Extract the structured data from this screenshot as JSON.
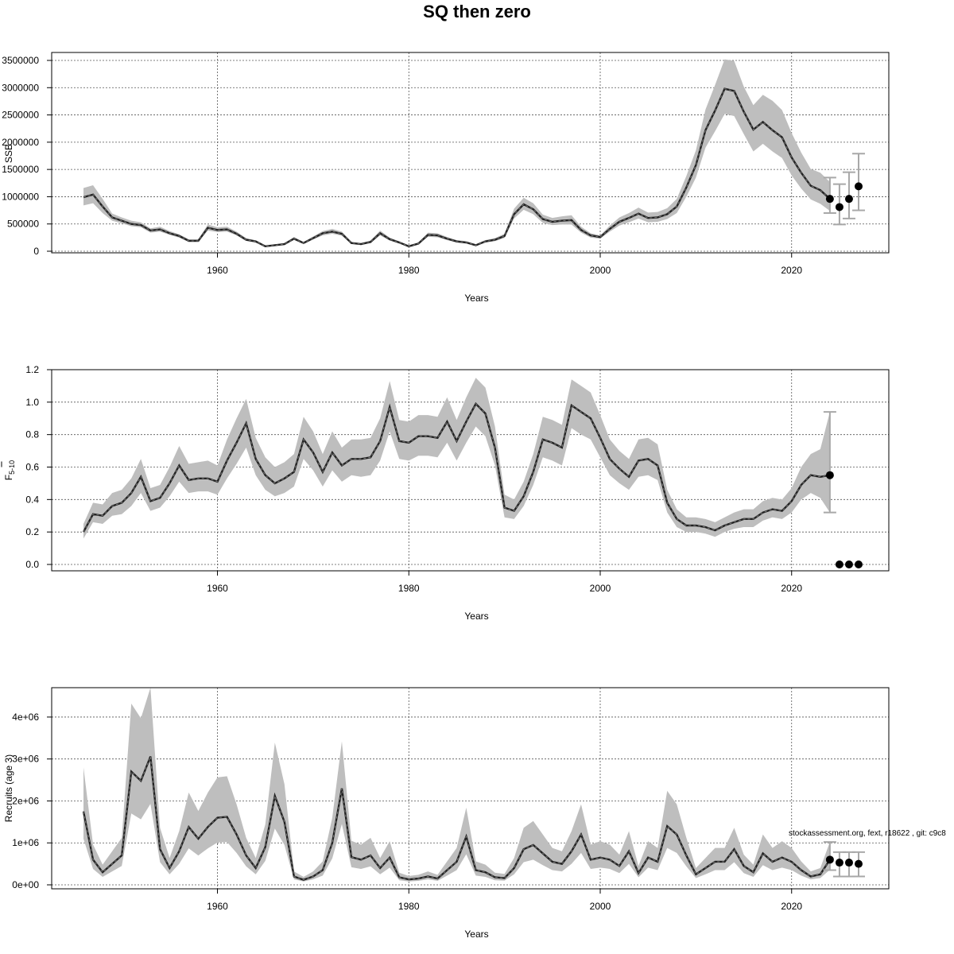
{
  "page": {
    "title": "SQ then zero",
    "footnote": "stockassessment.org, fext, r18622 , git: c9c8"
  },
  "chart_data": [
    {
      "type": "line",
      "xlabel": "Years",
      "ylabel": "SSB",
      "xlim": [
        1946,
        2027
      ],
      "ylim": [
        0,
        3500000
      ],
      "xticks": [
        1960,
        1980,
        2000,
        2020
      ],
      "xtick_labels": [
        "1960",
        "1980",
        "2000",
        "2020"
      ],
      "yticks": [
        0,
        500000,
        1000000,
        1500000,
        2000000,
        2500000,
        3000000,
        3500000
      ],
      "ytick_labels": [
        "0",
        "500000",
        "1000000",
        "1500000",
        "2000000",
        "2500000",
        "3000000",
        "3500000"
      ],
      "grid": true,
      "years": [
        1946,
        1947,
        1948,
        1949,
        1950,
        1951,
        1952,
        1953,
        1954,
        1955,
        1956,
        1957,
        1958,
        1959,
        1960,
        1961,
        1962,
        1963,
        1964,
        1965,
        1966,
        1967,
        1968,
        1969,
        1970,
        1971,
        1972,
        1973,
        1974,
        1975,
        1976,
        1977,
        1978,
        1979,
        1980,
        1981,
        1982,
        1983,
        1984,
        1985,
        1986,
        1987,
        1988,
        1989,
        1990,
        1991,
        1992,
        1993,
        1994,
        1995,
        1996,
        1997,
        1998,
        1999,
        2000,
        2001,
        2002,
        2003,
        2004,
        2005,
        2006,
        2007,
        2008,
        2009,
        2010,
        2011,
        2012,
        2013,
        2014,
        2015,
        2016,
        2017,
        2018,
        2019,
        2020,
        2021,
        2022,
        2023,
        2024
      ],
      "estimate": [
        990000,
        1040000,
        820000,
        620000,
        560000,
        500000,
        480000,
        380000,
        400000,
        330000,
        280000,
        190000,
        190000,
        430000,
        390000,
        400000,
        320000,
        210000,
        180000,
        90000,
        110000,
        130000,
        230000,
        150000,
        240000,
        330000,
        360000,
        320000,
        150000,
        130000,
        170000,
        330000,
        220000,
        160000,
        90000,
        140000,
        300000,
        290000,
        230000,
        180000,
        160000,
        110000,
        180000,
        210000,
        280000,
        680000,
        860000,
        770000,
        590000,
        540000,
        560000,
        570000,
        390000,
        290000,
        260000,
        410000,
        540000,
        610000,
        690000,
        610000,
        620000,
        680000,
        820000,
        1170000,
        1580000,
        2220000,
        2580000,
        2980000,
        2940000,
        2560000,
        2230000,
        2370000,
        2220000,
        2090000,
        1720000,
        1440000,
        1200000,
        1120000,
        960000
      ],
      "lower": [
        840000,
        880000,
        700000,
        560000,
        510000,
        460000,
        440000,
        340000,
        360000,
        300000,
        250000,
        170000,
        170000,
        380000,
        350000,
        360000,
        290000,
        190000,
        160000,
        80000,
        100000,
        120000,
        210000,
        135000,
        215000,
        290000,
        320000,
        285000,
        135000,
        115000,
        150000,
        290000,
        195000,
        140000,
        80000,
        125000,
        265000,
        255000,
        205000,
        160000,
        140000,
        95000,
        160000,
        185000,
        245000,
        600000,
        760000,
        680000,
        520000,
        480000,
        490000,
        490000,
        340000,
        250000,
        230000,
        360000,
        470000,
        530000,
        600000,
        530000,
        540000,
        590000,
        700000,
        1000000,
        1350000,
        1900000,
        2200000,
        2520000,
        2480000,
        2150000,
        1830000,
        1970000,
        1830000,
        1710000,
        1390000,
        1150000,
        950000,
        870000,
        740000
      ],
      "upper": [
        1160000,
        1210000,
        960000,
        690000,
        620000,
        560000,
        530000,
        420000,
        450000,
        370000,
        310000,
        220000,
        220000,
        490000,
        440000,
        450000,
        360000,
        240000,
        200000,
        105000,
        125000,
        150000,
        260000,
        170000,
        270000,
        370000,
        410000,
        360000,
        170000,
        150000,
        195000,
        380000,
        250000,
        180000,
        105000,
        160000,
        340000,
        330000,
        260000,
        205000,
        185000,
        125000,
        205000,
        240000,
        320000,
        780000,
        980000,
        880000,
        670000,
        610000,
        640000,
        660000,
        450000,
        330000,
        290000,
        470000,
        620000,
        700000,
        800000,
        710000,
        720000,
        790000,
        960000,
        1380000,
        1850000,
        2600000,
        3050000,
        3520000,
        3490000,
        3020000,
        2680000,
        2870000,
        2760000,
        2590000,
        2170000,
        1810000,
        1510000,
        1440000,
        1270000
      ],
      "projection": {
        "years": [
          2024,
          2025,
          2026,
          2027
        ],
        "median": [
          960000,
          810000,
          960000,
          1190000
        ],
        "low": [
          700000,
          490000,
          600000,
          750000
        ],
        "high": [
          1350000,
          1230000,
          1450000,
          1790000
        ]
      }
    },
    {
      "type": "line",
      "xlabel": "Years",
      "ylabel": "F5-10",
      "ylabel_main": "F",
      "ylabel_sub": "5-10",
      "xlim": [
        1946,
        2027
      ],
      "ylim": [
        0,
        1.2
      ],
      "xticks": [
        1960,
        1980,
        2000,
        2020
      ],
      "xtick_labels": [
        "1960",
        "1980",
        "2000",
        "2020"
      ],
      "yticks": [
        0,
        0.2,
        0.4,
        0.6,
        0.8,
        1.0,
        1.2
      ],
      "ytick_labels": [
        "0.0",
        "0.2",
        "0.4",
        "0.6",
        "0.8",
        "1.0",
        "1.2"
      ],
      "grid": true,
      "years": [
        1946,
        1947,
        1948,
        1949,
        1950,
        1951,
        1952,
        1953,
        1954,
        1955,
        1956,
        1957,
        1958,
        1959,
        1960,
        1961,
        1962,
        1963,
        1964,
        1965,
        1966,
        1967,
        1968,
        1969,
        1970,
        1971,
        1972,
        1973,
        1974,
        1975,
        1976,
        1977,
        1978,
        1979,
        1980,
        1981,
        1982,
        1983,
        1984,
        1985,
        1986,
        1987,
        1988,
        1989,
        1990,
        1991,
        1992,
        1993,
        1994,
        1995,
        1996,
        1997,
        1998,
        1999,
        2000,
        2001,
        2002,
        2003,
        2004,
        2005,
        2006,
        2007,
        2008,
        2009,
        2010,
        2011,
        2012,
        2013,
        2014,
        2015,
        2016,
        2017,
        2018,
        2019,
        2020,
        2021,
        2022,
        2023,
        2024
      ],
      "estimate": [
        0.2,
        0.31,
        0.3,
        0.36,
        0.38,
        0.44,
        0.54,
        0.39,
        0.41,
        0.5,
        0.61,
        0.52,
        0.53,
        0.53,
        0.51,
        0.64,
        0.75,
        0.87,
        0.65,
        0.55,
        0.5,
        0.53,
        0.57,
        0.77,
        0.69,
        0.57,
        0.69,
        0.61,
        0.65,
        0.65,
        0.66,
        0.76,
        0.97,
        0.76,
        0.75,
        0.79,
        0.79,
        0.78,
        0.88,
        0.76,
        0.88,
        0.99,
        0.93,
        0.72,
        0.35,
        0.33,
        0.42,
        0.57,
        0.77,
        0.75,
        0.72,
        0.98,
        0.94,
        0.9,
        0.78,
        0.65,
        0.59,
        0.54,
        0.64,
        0.65,
        0.61,
        0.38,
        0.28,
        0.24,
        0.24,
        0.23,
        0.21,
        0.24,
        0.26,
        0.28,
        0.28,
        0.32,
        0.34,
        0.33,
        0.39,
        0.49,
        0.55,
        0.54,
        0.55
      ],
      "lower": [
        0.16,
        0.26,
        0.25,
        0.3,
        0.31,
        0.36,
        0.44,
        0.33,
        0.35,
        0.42,
        0.51,
        0.44,
        0.45,
        0.45,
        0.43,
        0.53,
        0.62,
        0.72,
        0.55,
        0.46,
        0.42,
        0.44,
        0.48,
        0.65,
        0.58,
        0.48,
        0.58,
        0.51,
        0.55,
        0.54,
        0.55,
        0.64,
        0.82,
        0.65,
        0.64,
        0.67,
        0.67,
        0.66,
        0.75,
        0.64,
        0.75,
        0.85,
        0.79,
        0.61,
        0.29,
        0.28,
        0.36,
        0.49,
        0.66,
        0.64,
        0.61,
        0.84,
        0.8,
        0.77,
        0.66,
        0.55,
        0.5,
        0.46,
        0.54,
        0.55,
        0.52,
        0.32,
        0.23,
        0.2,
        0.2,
        0.19,
        0.17,
        0.2,
        0.22,
        0.23,
        0.23,
        0.27,
        0.29,
        0.28,
        0.32,
        0.4,
        0.44,
        0.41,
        0.32
      ],
      "upper": [
        0.25,
        0.38,
        0.37,
        0.44,
        0.46,
        0.53,
        0.65,
        0.47,
        0.49,
        0.6,
        0.73,
        0.62,
        0.63,
        0.64,
        0.61,
        0.77,
        0.9,
        1.02,
        0.78,
        0.66,
        0.6,
        0.63,
        0.68,
        0.91,
        0.82,
        0.68,
        0.82,
        0.72,
        0.77,
        0.77,
        0.78,
        0.9,
        1.13,
        0.89,
        0.88,
        0.92,
        0.92,
        0.91,
        1.03,
        0.89,
        1.03,
        1.15,
        1.09,
        0.85,
        0.43,
        0.4,
        0.51,
        0.68,
        0.91,
        0.89,
        0.86,
        1.14,
        1.1,
        1.06,
        0.92,
        0.77,
        0.7,
        0.65,
        0.77,
        0.78,
        0.74,
        0.46,
        0.34,
        0.29,
        0.29,
        0.28,
        0.26,
        0.29,
        0.32,
        0.34,
        0.34,
        0.39,
        0.41,
        0.4,
        0.47,
        0.6,
        0.68,
        0.71,
        0.94
      ],
      "projection": {
        "years": [
          2024,
          2025,
          2026,
          2027
        ],
        "median": [
          0.55,
          0.0,
          0.0,
          0.0
        ],
        "low": [
          0.32,
          null,
          null,
          null
        ],
        "high": [
          0.94,
          null,
          null,
          null
        ]
      }
    },
    {
      "type": "line",
      "xlabel": "Years",
      "ylabel": "Recruits (age 3)",
      "xlim": [
        1946,
        2027
      ],
      "ylim": [
        0,
        4700000
      ],
      "xticks": [
        1960,
        1980,
        2000,
        2020
      ],
      "xtick_labels": [
        "1960",
        "1980",
        "2000",
        "2020"
      ],
      "yticks": [
        0,
        1000000,
        2000000,
        3000000,
        4000000
      ],
      "ytick_labels": [
        "0e+00",
        "1e+06",
        "2e+06",
        "3e+06",
        "4e+06"
      ],
      "grid": true,
      "years": [
        1946,
        1947,
        1948,
        1949,
        1950,
        1951,
        1952,
        1953,
        1954,
        1955,
        1956,
        1957,
        1958,
        1959,
        1960,
        1961,
        1962,
        1963,
        1964,
        1965,
        1966,
        1967,
        1968,
        1969,
        1970,
        1971,
        1972,
        1973,
        1974,
        1975,
        1976,
        1977,
        1978,
        1979,
        1980,
        1981,
        1982,
        1983,
        1984,
        1985,
        1986,
        1987,
        1988,
        1989,
        1990,
        1991,
        1992,
        1993,
        1994,
        1995,
        1996,
        1997,
        1998,
        1999,
        2000,
        2001,
        2002,
        2003,
        2004,
        2005,
        2006,
        2007,
        2008,
        2009,
        2010,
        2011,
        2012,
        2013,
        2014,
        2015,
        2016,
        2017,
        2018,
        2019,
        2020,
        2021,
        2022,
        2023,
        2024
      ],
      "estimate": [
        1750000,
        600000,
        300000,
        500000,
        700000,
        2700000,
        2480000,
        3060000,
        850000,
        400000,
        800000,
        1380000,
        1100000,
        1380000,
        1600000,
        1620000,
        1200000,
        700000,
        400000,
        900000,
        2120000,
        1500000,
        200000,
        120000,
        200000,
        350000,
        1000000,
        2300000,
        660000,
        600000,
        700000,
        400000,
        650000,
        180000,
        130000,
        150000,
        200000,
        150000,
        350000,
        550000,
        1150000,
        350000,
        300000,
        180000,
        160000,
        400000,
        850000,
        950000,
        750000,
        550000,
        500000,
        800000,
        1200000,
        600000,
        650000,
        600000,
        450000,
        800000,
        280000,
        650000,
        550000,
        1400000,
        1200000,
        700000,
        250000,
        400000,
        550000,
        550000,
        850000,
        450000,
        300000,
        750000,
        550000,
        650000,
        550000,
        350000,
        200000,
        250000,
        600000
      ],
      "lower": [
        1100000,
        380000,
        190000,
        320000,
        450000,
        1700000,
        1560000,
        1930000,
        540000,
        250000,
        500000,
        870000,
        700000,
        870000,
        1010000,
        1020000,
        760000,
        440000,
        250000,
        570000,
        1340000,
        950000,
        130000,
        80000,
        130000,
        220000,
        630000,
        1450000,
        420000,
        380000,
        440000,
        250000,
        410000,
        110000,
        80000,
        95000,
        130000,
        95000,
        220000,
        350000,
        730000,
        220000,
        190000,
        110000,
        100000,
        250000,
        540000,
        600000,
        470000,
        350000,
        320000,
        500000,
        760000,
        380000,
        410000,
        380000,
        280000,
        500000,
        180000,
        410000,
        350000,
        880000,
        760000,
        440000,
        160000,
        250000,
        350000,
        350000,
        540000,
        280000,
        190000,
        470000,
        350000,
        410000,
        350000,
        220000,
        130000,
        160000,
        360000
      ],
      "upper": [
        2800000,
        960000,
        480000,
        800000,
        1120000,
        4320000,
        3970000,
        4700000,
        1360000,
        640000,
        1280000,
        2200000,
        1760000,
        2200000,
        2560000,
        2590000,
        1920000,
        1120000,
        640000,
        1440000,
        3390000,
        2400000,
        320000,
        190000,
        320000,
        560000,
        1600000,
        3420000,
        1050000,
        960000,
        1120000,
        640000,
        1040000,
        290000,
        210000,
        240000,
        320000,
        240000,
        560000,
        880000,
        1840000,
        560000,
        480000,
        290000,
        260000,
        640000,
        1360000,
        1520000,
        1200000,
        880000,
        800000,
        1280000,
        1920000,
        960000,
        1040000,
        960000,
        720000,
        1280000,
        450000,
        1040000,
        880000,
        2240000,
        1920000,
        1120000,
        400000,
        640000,
        880000,
        880000,
        1360000,
        720000,
        480000,
        1200000,
        880000,
        1040000,
        880000,
        560000,
        320000,
        400000,
        1020000
      ],
      "projection": {
        "years": [
          2024,
          2025,
          2026,
          2027
        ],
        "median": [
          600000,
          530000,
          530000,
          500000
        ],
        "low": [
          350000,
          200000,
          200000,
          200000
        ],
        "high": [
          1020000,
          780000,
          780000,
          780000
        ]
      }
    }
  ]
}
